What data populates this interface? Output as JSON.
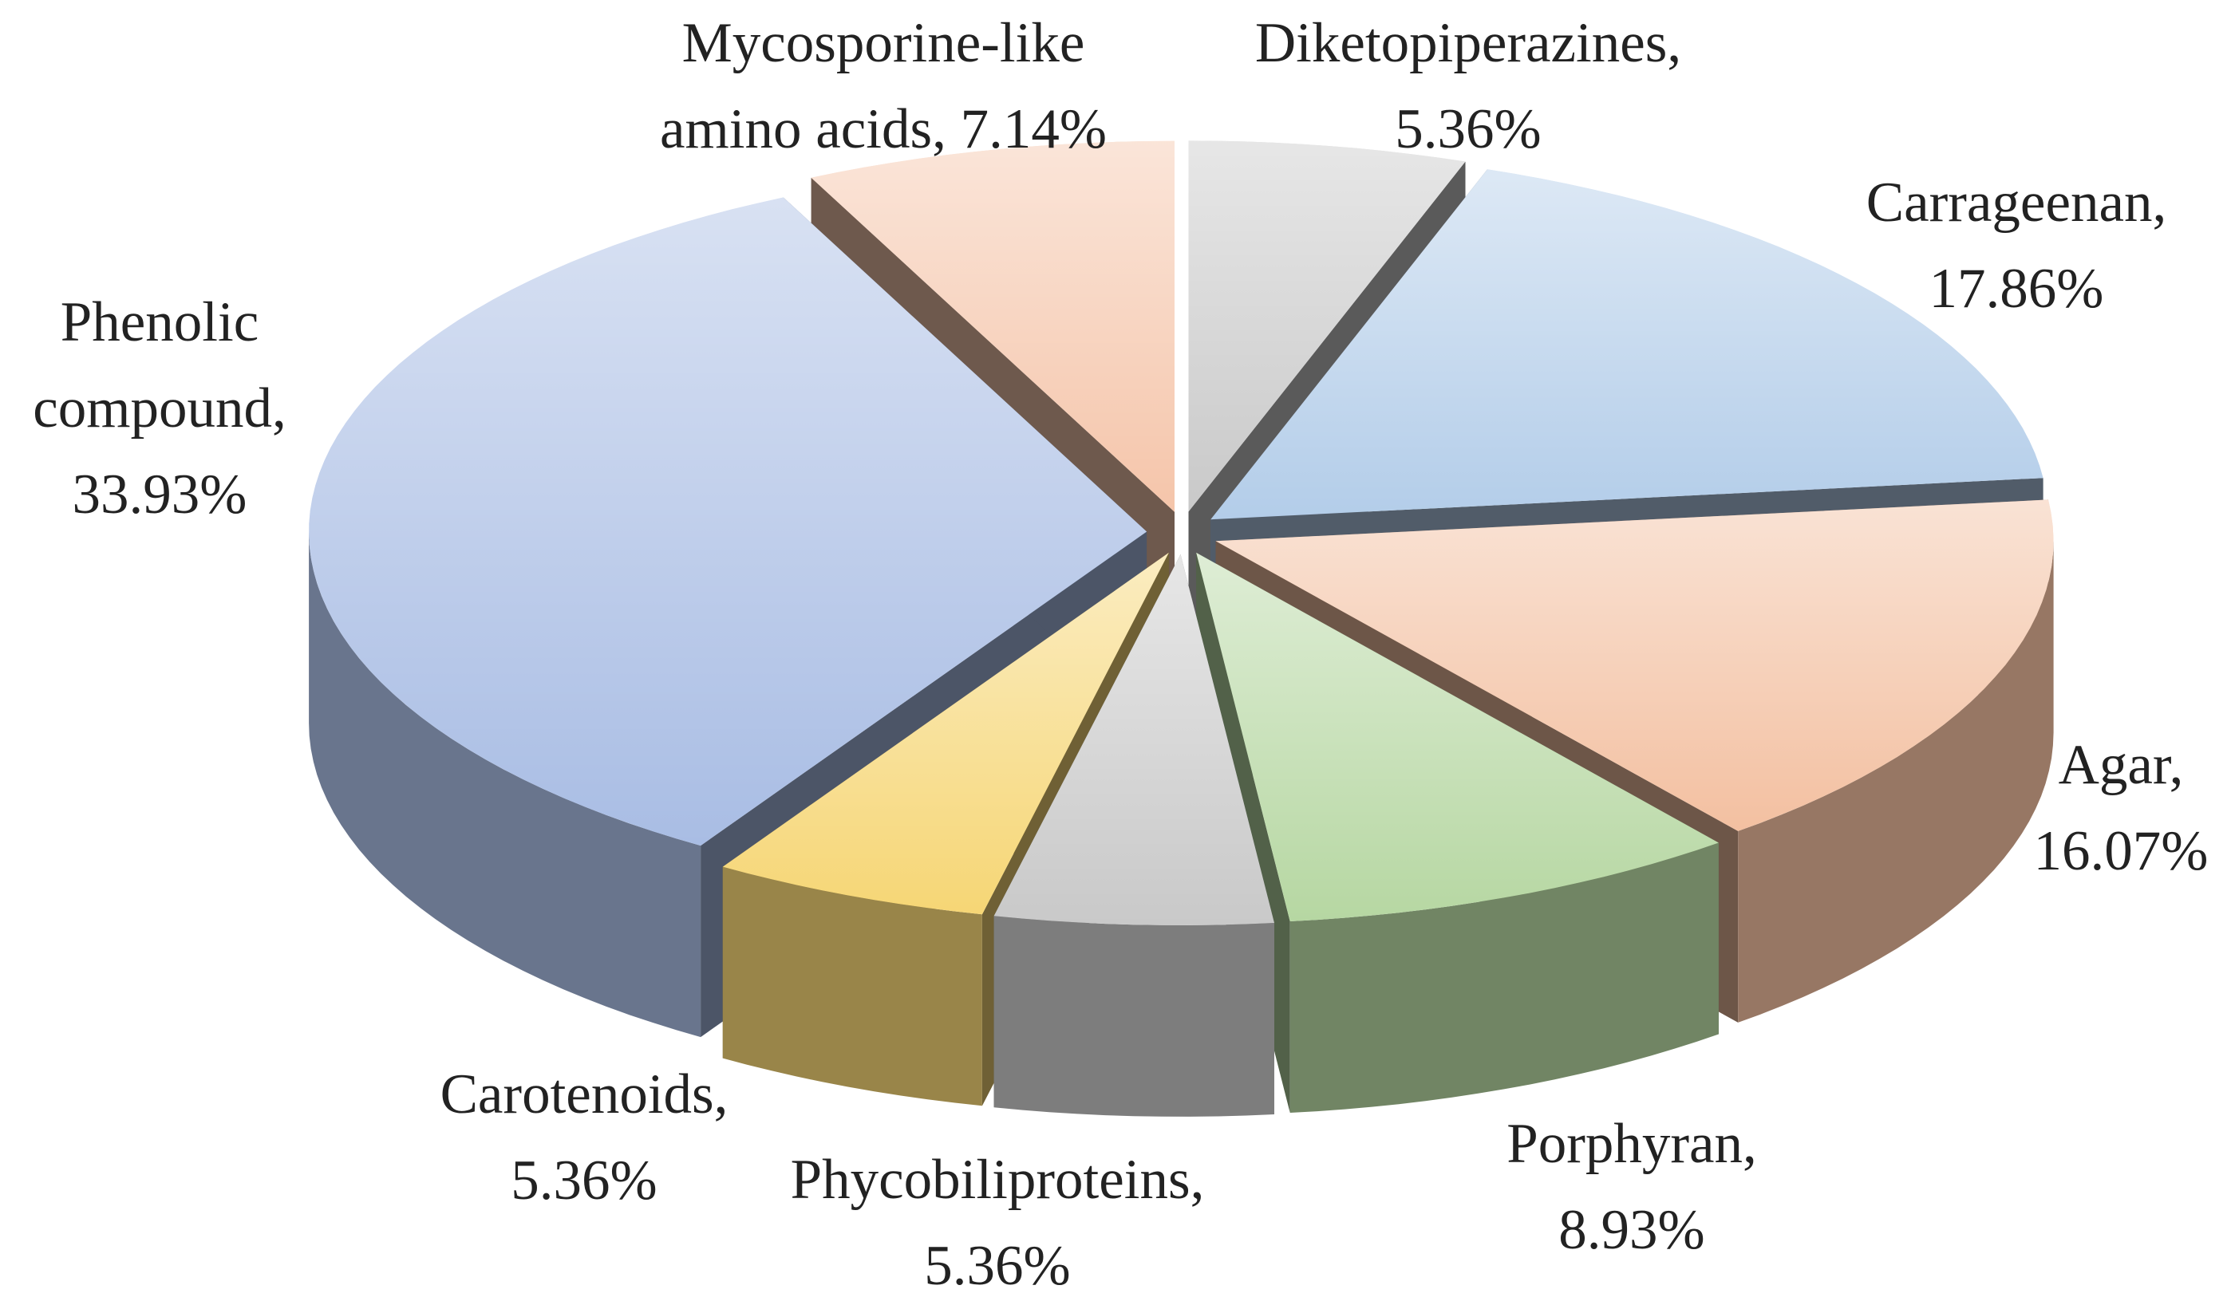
{
  "chart_data": {
    "type": "pie",
    "categories": [
      "Diketopiperazines,",
      "Carrageenan,",
      "Agar,",
      "Porphyran,",
      "Phycobiliproteins,",
      "Carotenoids,",
      "Phenolic compound,",
      "Mycosporine-like amino acids,"
    ],
    "values": [
      5.36,
      17.86,
      16.07,
      8.93,
      5.36,
      5.36,
      33.93,
      7.14
    ],
    "value_labels": [
      "5.36%",
      "17.86%",
      "16.07%",
      "8.93%",
      "5.36%",
      "5.36%",
      "33.93%",
      "7.14%"
    ],
    "colors": [
      "#c9c9c9",
      "#b3cde9",
      "#f3c0a1",
      "#b6d7a2",
      "#c9c9c9",
      "#f6d675",
      "#a9bde4",
      "#f5c5aa"
    ]
  }
}
